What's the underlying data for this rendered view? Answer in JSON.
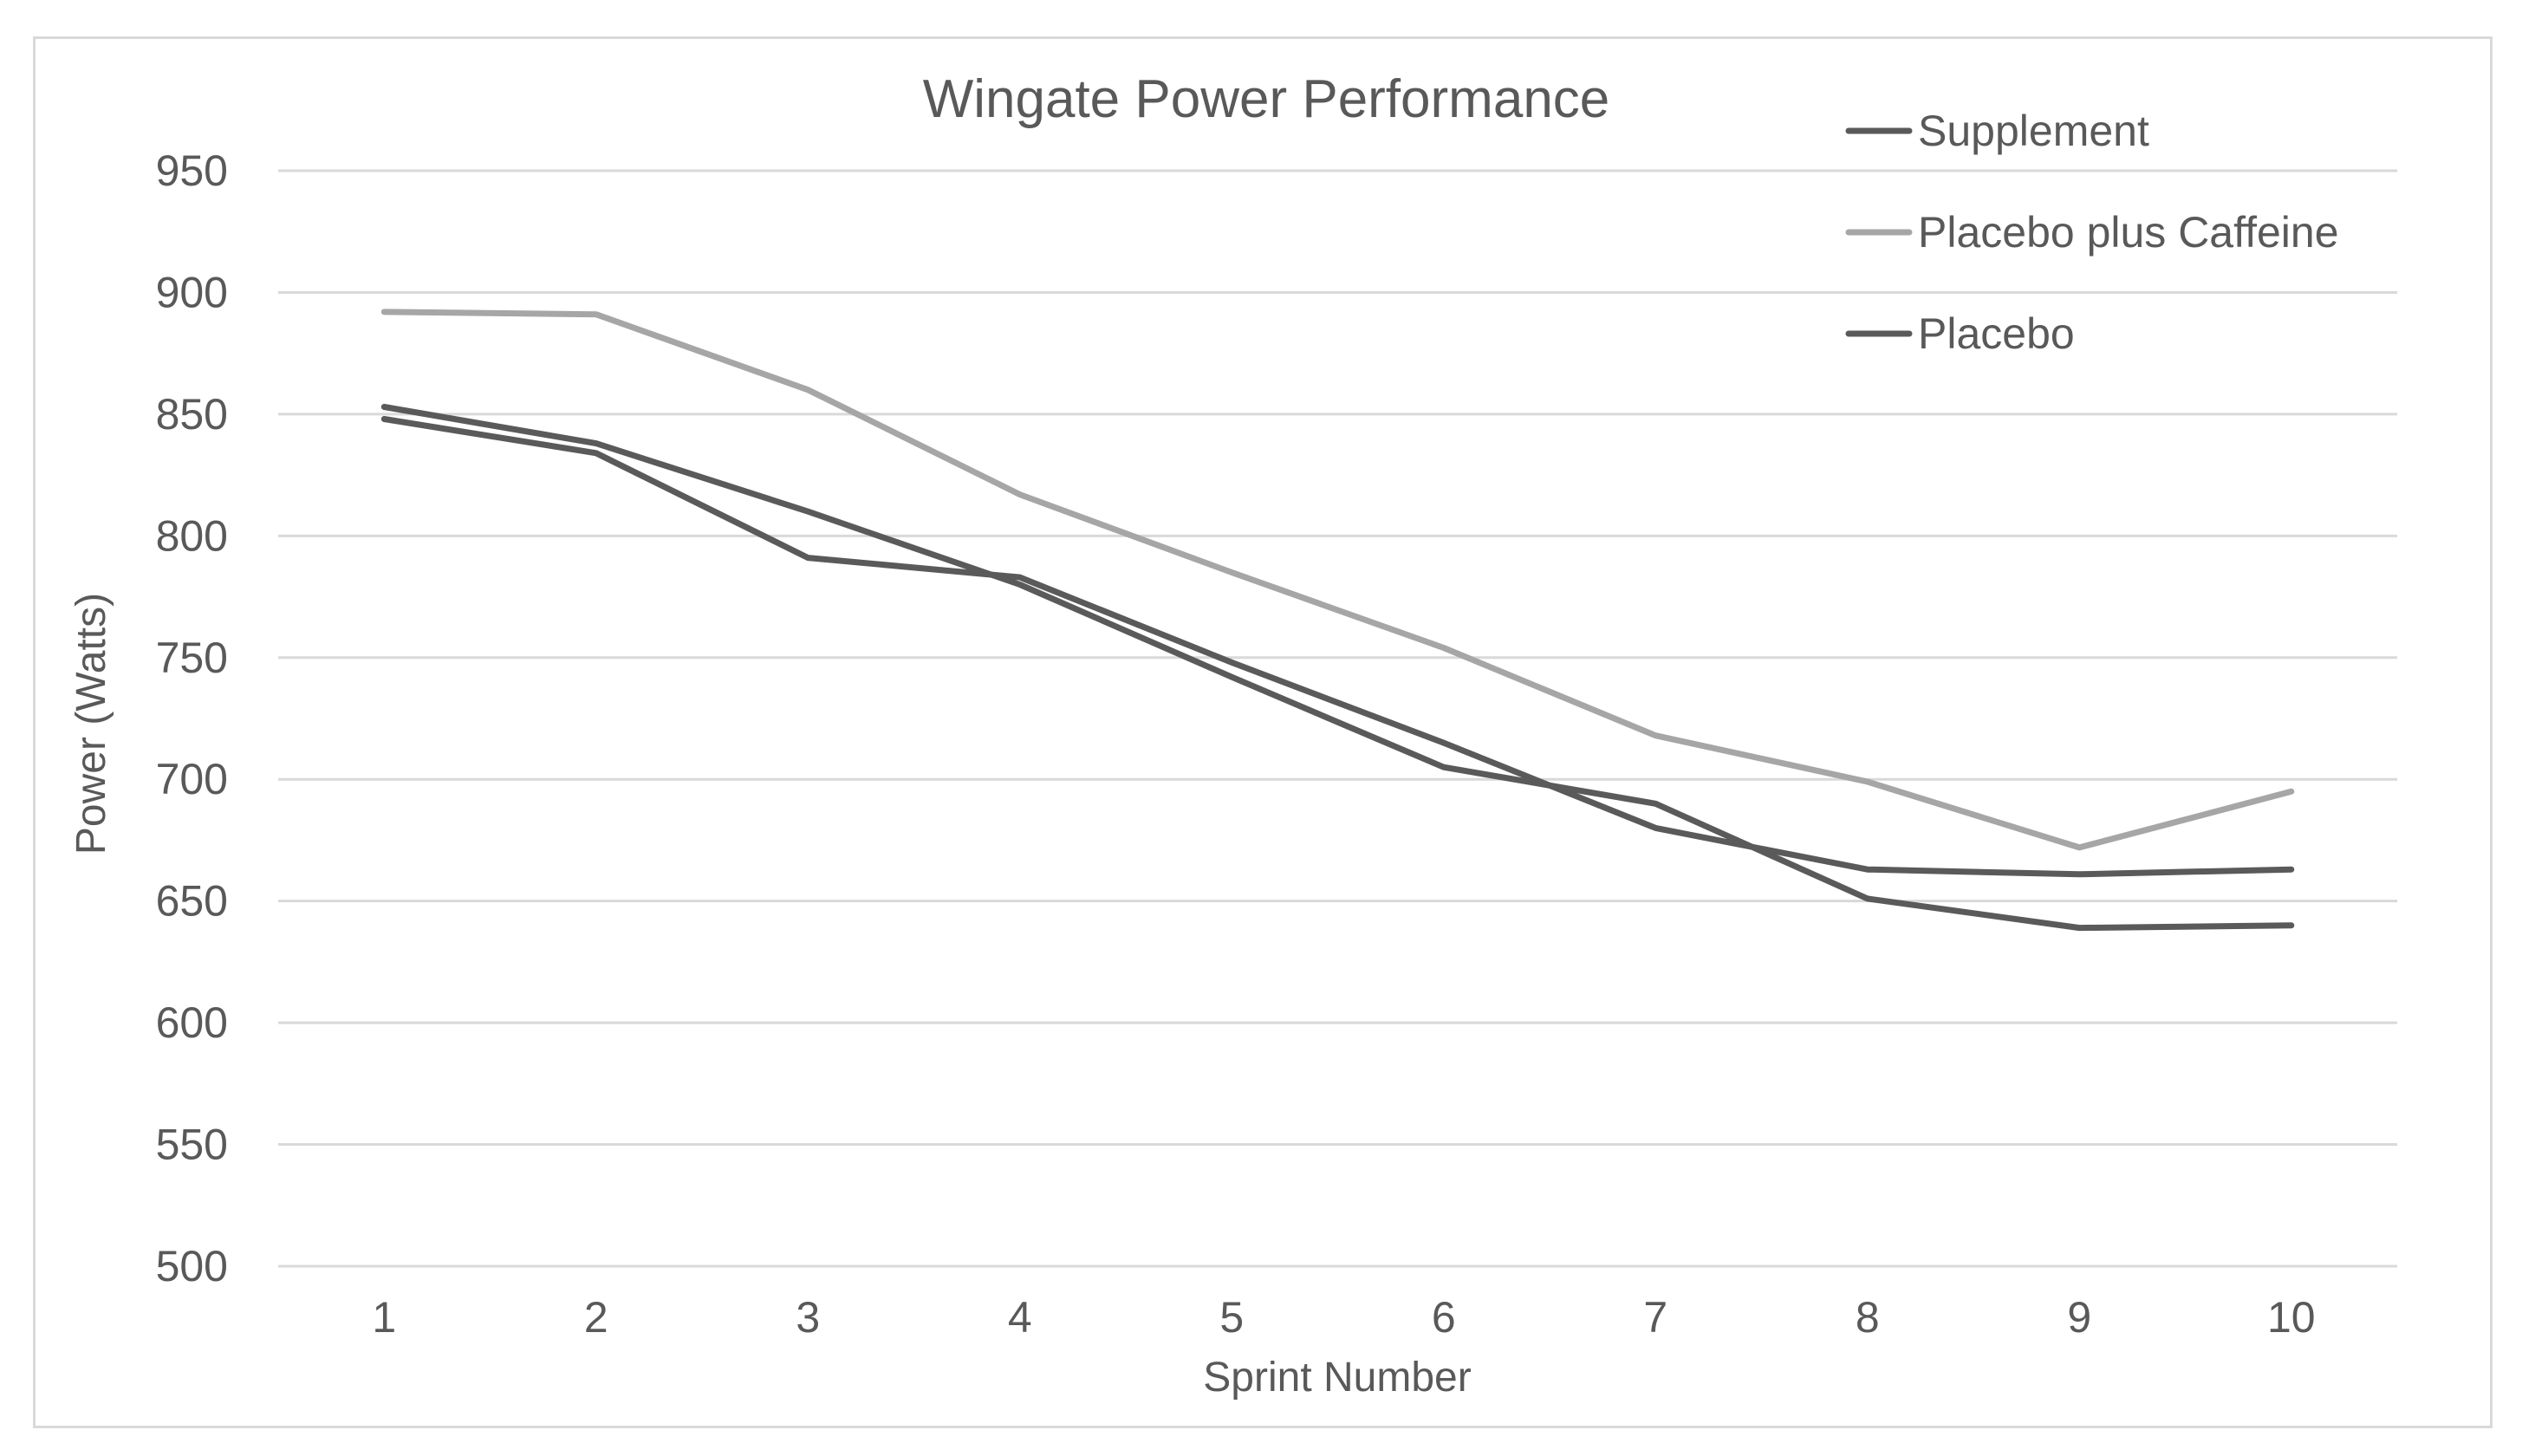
{
  "chart_data": {
    "type": "line",
    "title": "Wingate Power Performance",
    "xlabel": "Sprint Number",
    "ylabel": "Power (Watts)",
    "categories": [
      "1",
      "2",
      "3",
      "4",
      "5",
      "6",
      "7",
      "8",
      "9",
      "10"
    ],
    "ylim": [
      500,
      950
    ],
    "yticks": [
      "500",
      "550",
      "600",
      "650",
      "700",
      "750",
      "800",
      "850",
      "900",
      "950"
    ],
    "grid": true,
    "legend_position": "top-right",
    "series": [
      {
        "name": "Supplement",
        "color": "#5a5a5a",
        "values": [
          848,
          834,
          791,
          783,
          748,
          715,
          680,
          663,
          661,
          663
        ]
      },
      {
        "name": "Placebo plus Caffeine",
        "color": "#a6a6a6",
        "values": [
          892,
          891,
          860,
          817,
          785,
          754,
          718,
          699,
          672,
          695
        ]
      },
      {
        "name": "Placebo",
        "color": "#5a5a5a",
        "values": [
          853,
          838,
          810,
          780,
          742,
          705,
          690,
          651,
          639,
          640
        ]
      }
    ]
  }
}
